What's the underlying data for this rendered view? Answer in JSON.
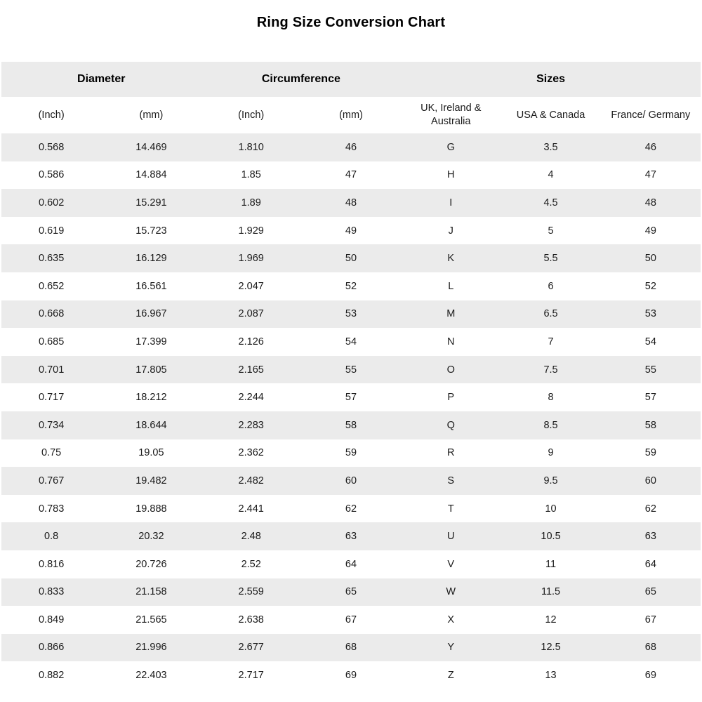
{
  "title": "Ring Size Conversion Chart",
  "colors": {
    "stripe_bg": "#ebebeb",
    "background": "#ffffff",
    "text": "#1a1a1a",
    "heading_text": "#000000"
  },
  "chart_data": {
    "type": "table",
    "title": "Ring Size Conversion Chart",
    "group_headers": [
      {
        "label": "Diameter",
        "span": 2
      },
      {
        "label": "Circumference",
        "span": 2
      },
      {
        "label": "Sizes",
        "span": 3
      }
    ],
    "columns": [
      "(Inch)",
      "(mm)",
      "(Inch)",
      "(mm)",
      "UK, Ireland & Australia",
      "USA & Canada",
      "France/ Germany"
    ],
    "rows": [
      [
        "0.568",
        "14.469",
        "1.810",
        "46",
        "G",
        "3.5",
        "46"
      ],
      [
        "0.586",
        "14.884",
        "1.85",
        "47",
        "H",
        "4",
        "47"
      ],
      [
        "0.602",
        "15.291",
        "1.89",
        "48",
        "I",
        "4.5",
        "48"
      ],
      [
        "0.619",
        "15.723",
        "1.929",
        "49",
        "J",
        "5",
        "49"
      ],
      [
        "0.635",
        "16.129",
        "1.969",
        "50",
        "K",
        "5.5",
        "50"
      ],
      [
        "0.652",
        "16.561",
        "2.047",
        "52",
        "L",
        "6",
        "52"
      ],
      [
        "0.668",
        "16.967",
        "2.087",
        "53",
        "M",
        "6.5",
        "53"
      ],
      [
        "0.685",
        "17.399",
        "2.126",
        "54",
        "N",
        "7",
        "54"
      ],
      [
        "0.701",
        "17.805",
        "2.165",
        "55",
        "O",
        "7.5",
        "55"
      ],
      [
        "0.717",
        "18.212",
        "2.244",
        "57",
        "P",
        "8",
        "57"
      ],
      [
        "0.734",
        "18.644",
        "2.283",
        "58",
        "Q",
        "8.5",
        "58"
      ],
      [
        "0.75",
        "19.05",
        "2.362",
        "59",
        "R",
        "9",
        "59"
      ],
      [
        "0.767",
        "19.482",
        "2.482",
        "60",
        "S",
        "9.5",
        "60"
      ],
      [
        "0.783",
        "19.888",
        "2.441",
        "62",
        "T",
        "10",
        "62"
      ],
      [
        "0.8",
        "20.32",
        "2.48",
        "63",
        "U",
        "10.5",
        "63"
      ],
      [
        "0.816",
        "20.726",
        "2.52",
        "64",
        "V",
        "11",
        "64"
      ],
      [
        "0.833",
        "21.158",
        "2.559",
        "65",
        "W",
        "11.5",
        "65"
      ],
      [
        "0.849",
        "21.565",
        "2.638",
        "67",
        "X",
        "12",
        "67"
      ],
      [
        "0.866",
        "21.996",
        "2.677",
        "68",
        "Y",
        "12.5",
        "68"
      ],
      [
        "0.882",
        "22.403",
        "2.717",
        "69",
        "Z",
        "13",
        "69"
      ]
    ]
  }
}
